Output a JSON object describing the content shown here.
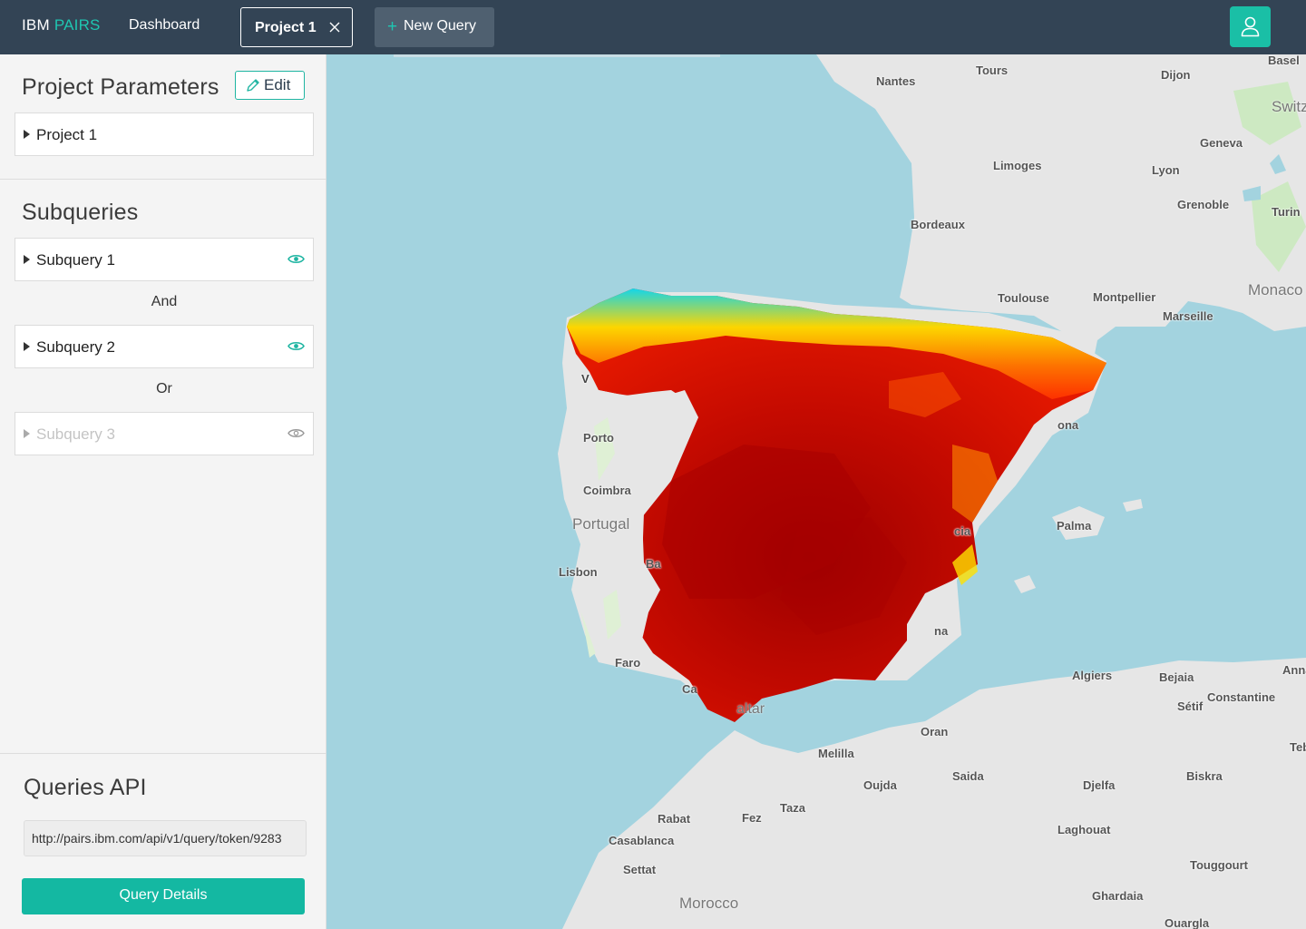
{
  "app": {
    "brand": "IBM",
    "brand_accent": "PAIRS",
    "accent_color": "#1fc6b1"
  },
  "nav": {
    "dashboard": "Dashboard",
    "active_tab": "Project 1",
    "new_query": "New Query"
  },
  "icons": {
    "close": "close-icon",
    "plus": "plus-icon",
    "user": "user-icon",
    "edit": "pencil-icon",
    "visibility": "eye-icon",
    "expand": "caret-right-icon"
  },
  "sidebar": {
    "project_params": {
      "title": "Project Parameters",
      "edit_label": "Edit",
      "project_name": "Project 1"
    },
    "subqueries": {
      "title": "Subqueries",
      "items": [
        {
          "label": "Subquery 1",
          "visible": true
        },
        {
          "label": "Subquery 2",
          "visible": true
        },
        {
          "label": "Subquery 3",
          "visible": false
        }
      ],
      "connectors": [
        "And",
        "Or"
      ]
    },
    "api": {
      "title": "Queries API",
      "url": "http://pairs.ibm.com/api/v1/query/token/9283",
      "details_label": "Query Details"
    }
  },
  "map": {
    "cities": {
      "nantes": "Nantes",
      "tours": "Tours",
      "dijon": "Dijon",
      "basel": "Basel",
      "limoges": "Limoges",
      "lyon": "Lyon",
      "geneva": "Geneva",
      "grenoble": "Grenoble",
      "turin": "Turin",
      "bordeaux": "Bordeaux",
      "toulouse": "Toulouse",
      "montpellier": "Montpellier",
      "marseille": "Marseille",
      "porto": "Porto",
      "coimbra": "Coimbra",
      "lisbon": "Lisbon",
      "faro": "Faro",
      "palma": "Palma",
      "algiers": "Algiers",
      "bejaia": "Bejaia",
      "annaba": "Annab",
      "setif": "Sétif",
      "constantine": "Constantine",
      "oran": "Oran",
      "melilla": "Melilla",
      "oujda": "Oujda",
      "saida": "Saida",
      "djelfa": "Djelfa",
      "biskra": "Biskra",
      "tebessa": "Tebe",
      "taza": "Taza",
      "rabat": "Rabat",
      "fez": "Fez",
      "casablanca": "Casablanca",
      "laghouat": "Laghouat",
      "touggourt": "Touggourt",
      "settat": "Settat",
      "ghardaia": "Ghardaia",
      "ouargla": "Ouargla",
      "barcelona_part": "ona",
      "valencia_part": "cia",
      "almeria_part": "na",
      "badajoz_part": "Ba",
      "cadiz_part": "Ca",
      "gibraltar_part": "altar",
      "vigo_part": "V"
    },
    "countries": {
      "portugal": "Portugal",
      "morocco": "Morocco",
      "monaco": "Monaco",
      "switzerland": "Switz"
    },
    "colors": {
      "sea": "#a3d3df",
      "land": "#e6e6e6",
      "heat_low": "#00e5ff",
      "heat_mid": "#ffee00",
      "heat_high": "#ff2a00",
      "heat_max": "#a60000"
    }
  }
}
